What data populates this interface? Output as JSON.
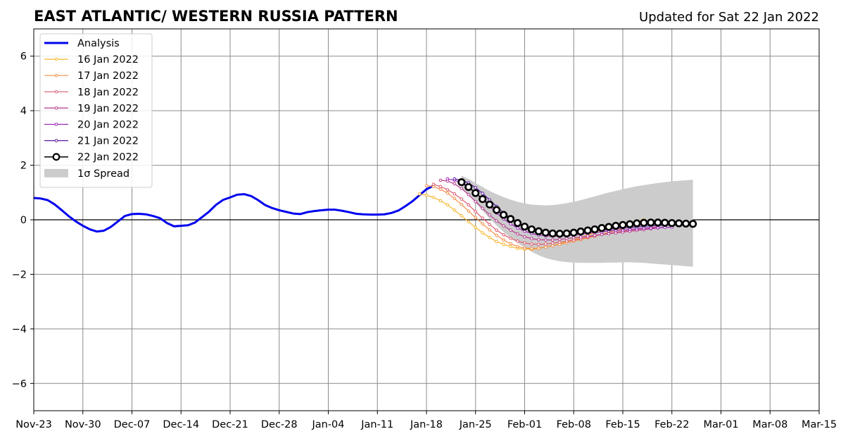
{
  "chart_data": {
    "type": "line",
    "title": "EAST ATLANTIC/ WESTERN RUSSIA PATTERN",
    "subtitle": "Updated for Sat 22 Jan 2022",
    "xlabel": "",
    "ylabel": "",
    "ylim": [
      -7,
      7
    ],
    "yticks": [
      -6,
      -4,
      -2,
      0,
      2,
      4,
      6
    ],
    "ytick_labels": [
      "−6",
      "−4",
      "−2",
      "0",
      "2",
      "4",
      "6"
    ],
    "xlim": [
      "2021-11-23",
      "2022-03-15"
    ],
    "xtick_labels": [
      "Nov-23",
      "Nov-30",
      "Dec-07",
      "Dec-14",
      "Dec-21",
      "Dec-28",
      "Jan-04",
      "Jan-11",
      "Jan-18",
      "Jan-25",
      "Feb-01",
      "Feb-08",
      "Feb-15",
      "Feb-22",
      "Mar-01",
      "Mar-08",
      "Mar-15"
    ],
    "grid": true,
    "legend_position": "top-left",
    "series": [
      {
        "name": "Analysis",
        "color": "#0000ee",
        "marker": "none",
        "start": "2021-11-23",
        "values": [
          0.8,
          0.78,
          0.72,
          0.56,
          0.35,
          0.13,
          -0.06,
          -0.22,
          -0.35,
          -0.43,
          -0.4,
          -0.26,
          -0.06,
          0.14,
          0.21,
          0.22,
          0.2,
          0.14,
          0.06,
          -0.12,
          -0.24,
          -0.22,
          -0.2,
          -0.1,
          0.1,
          0.3,
          0.55,
          0.73,
          0.82,
          0.92,
          0.94,
          0.87,
          0.72,
          0.54,
          0.43,
          0.35,
          0.29,
          0.23,
          0.21,
          0.28,
          0.32,
          0.35,
          0.37,
          0.37,
          0.33,
          0.28,
          0.22,
          0.2,
          0.19,
          0.19,
          0.2,
          0.25,
          0.34,
          0.5,
          0.68,
          0.9,
          1.12,
          1.25
        ]
      },
      {
        "name": "16 Jan 2022",
        "color": "#f5b52c",
        "marker": "small",
        "start": "2022-01-17",
        "values": [
          0.95,
          0.9,
          0.82,
          0.7,
          0.55,
          0.35,
          0.15,
          -0.07,
          -0.28,
          -0.48,
          -0.65,
          -0.8,
          -0.9,
          -0.98,
          -1.05,
          -1.08,
          -1.08,
          -1.05,
          -1.0,
          -0.95,
          -0.88,
          -0.8,
          -0.72,
          -0.64,
          -0.56,
          -0.48,
          -0.4,
          -0.32,
          -0.24,
          -0.17,
          -0.1,
          -0.05,
          0.0
        ]
      },
      {
        "name": "17 Jan 2022",
        "color": "#f58e45",
        "marker": "small",
        "start": "2022-01-18",
        "values": [
          1.25,
          1.22,
          1.12,
          0.98,
          0.78,
          0.56,
          0.32,
          0.08,
          -0.15,
          -0.37,
          -0.57,
          -0.74,
          -0.88,
          -0.98,
          -1.04,
          -1.05,
          -1.04,
          -1.0,
          -0.95,
          -0.9,
          -0.84,
          -0.78,
          -0.72,
          -0.66,
          -0.6,
          -0.53,
          -0.46,
          -0.39,
          -0.32,
          -0.26,
          -0.2,
          -0.14,
          -0.08
        ]
      },
      {
        "name": "18 Jan 2022",
        "color": "#dc5a6e",
        "marker": "small",
        "start": "2022-01-19",
        "values": [
          1.3,
          1.22,
          1.1,
          0.95,
          0.76,
          0.55,
          0.3,
          0.06,
          -0.17,
          -0.38,
          -0.55,
          -0.68,
          -0.78,
          -0.85,
          -0.89,
          -0.9,
          -0.89,
          -0.86,
          -0.82,
          -0.78,
          -0.74,
          -0.69,
          -0.64,
          -0.59,
          -0.54,
          -0.5,
          -0.46,
          -0.42,
          -0.38,
          -0.35,
          -0.32,
          -0.28,
          -0.25
        ]
      },
      {
        "name": "19 Jan 2022",
        "color": "#b83c8f",
        "marker": "small",
        "start": "2022-01-20",
        "values": [
          1.45,
          1.42,
          1.32,
          1.15,
          0.92,
          0.67,
          0.42,
          0.18,
          -0.04,
          -0.22,
          -0.38,
          -0.52,
          -0.62,
          -0.69,
          -0.73,
          -0.74,
          -0.74,
          -0.72,
          -0.69,
          -0.66,
          -0.63,
          -0.6,
          -0.57,
          -0.54,
          -0.51,
          -0.48,
          -0.45,
          -0.42,
          -0.39,
          -0.36,
          -0.33,
          -0.3,
          -0.27
        ]
      },
      {
        "name": "20 Jan 2022",
        "color": "#9b28b8",
        "marker": "small",
        "start": "2022-01-21",
        "values": [
          1.5,
          1.45,
          1.35,
          1.18,
          0.98,
          0.74,
          0.49,
          0.25,
          0.03,
          -0.15,
          -0.3,
          -0.42,
          -0.5,
          -0.56,
          -0.59,
          -0.6,
          -0.6,
          -0.58,
          -0.56,
          -0.53,
          -0.5,
          -0.47,
          -0.44,
          -0.41,
          -0.39,
          -0.37,
          -0.35,
          -0.33,
          -0.31,
          -0.3,
          -0.29,
          -0.28,
          -0.27
        ]
      },
      {
        "name": "21 Jan 2022",
        "color": "#5a1aa0",
        "marker": "small",
        "start": "2022-01-22",
        "values": [
          1.5,
          1.45,
          1.35,
          1.18,
          0.97,
          0.73,
          0.49,
          0.26,
          0.06,
          -0.11,
          -0.25,
          -0.36,
          -0.44,
          -0.49,
          -0.52,
          -0.53,
          -0.52,
          -0.5,
          -0.47,
          -0.44,
          -0.41,
          -0.38,
          -0.35,
          -0.32,
          -0.3,
          -0.28,
          -0.26,
          -0.24,
          -0.22,
          -0.21,
          -0.2,
          -0.19,
          -0.18
        ]
      },
      {
        "name": "22 Jan 2022",
        "color": "#000000",
        "marker": "large",
        "start": "2022-01-23",
        "values": [
          1.38,
          1.2,
          0.98,
          0.76,
          0.56,
          0.36,
          0.18,
          0.03,
          -0.12,
          -0.25,
          -0.35,
          -0.42,
          -0.47,
          -0.5,
          -0.51,
          -0.5,
          -0.47,
          -0.43,
          -0.39,
          -0.35,
          -0.3,
          -0.26,
          -0.22,
          -0.19,
          -0.16,
          -0.13,
          -0.11,
          -0.1,
          -0.1,
          -0.11,
          -0.12,
          -0.13,
          -0.14,
          -0.15
        ]
      }
    ],
    "spread": {
      "name": "1σ Spread",
      "color": "#cccccc",
      "start": "2022-01-23",
      "upper": [
        1.62,
        1.5,
        1.35,
        1.2,
        1.06,
        0.94,
        0.83,
        0.74,
        0.66,
        0.6,
        0.56,
        0.54,
        0.53,
        0.54,
        0.57,
        0.61,
        0.66,
        0.72,
        0.79,
        0.86,
        0.93,
        1.0,
        1.06,
        1.12,
        1.18,
        1.23,
        1.27,
        1.31,
        1.35,
        1.38,
        1.41,
        1.43,
        1.45,
        1.47
      ],
      "lower": [
        1.18,
        0.92,
        0.62,
        0.33,
        0.05,
        -0.21,
        -0.45,
        -0.66,
        -0.85,
        -1.02,
        -1.17,
        -1.3,
        -1.4,
        -1.47,
        -1.52,
        -1.55,
        -1.57,
        -1.58,
        -1.58,
        -1.58,
        -1.58,
        -1.57,
        -1.57,
        -1.56,
        -1.56,
        -1.57,
        -1.58,
        -1.6,
        -1.62,
        -1.64,
        -1.66,
        -1.68,
        -1.7,
        -1.72
      ]
    }
  }
}
